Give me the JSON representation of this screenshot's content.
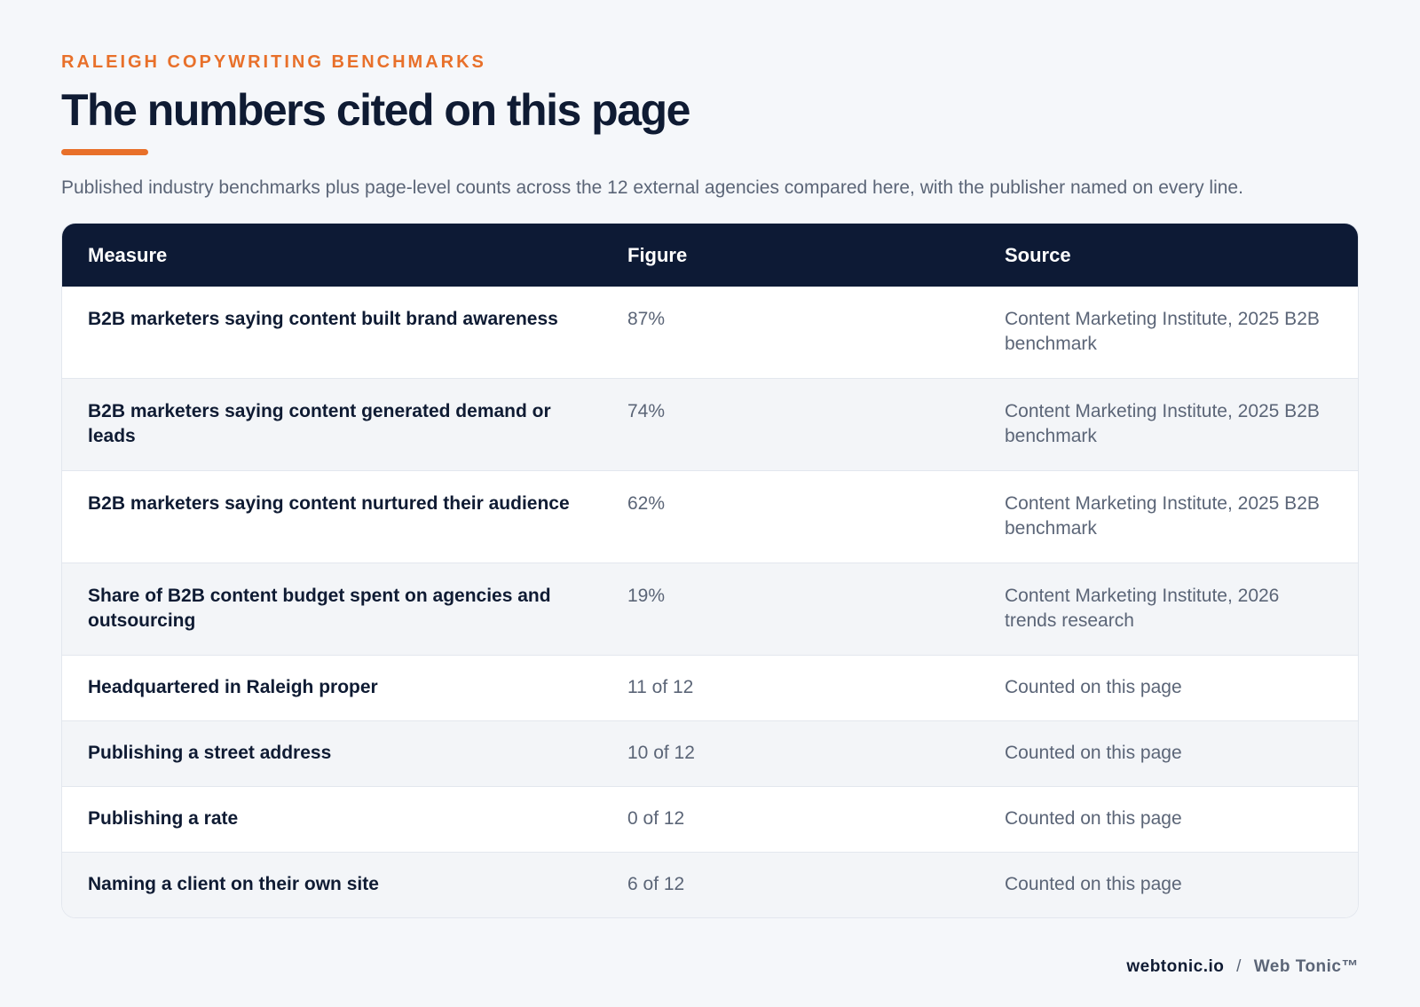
{
  "header": {
    "eyebrow": "RALEIGH COPYWRITING BENCHMARKS",
    "title": "The numbers cited on this page",
    "subtitle": "Published industry benchmarks plus page-level counts across the 12 external agencies compared here, with the publisher named on every line."
  },
  "table": {
    "columns": [
      "Measure",
      "Figure",
      "Source"
    ],
    "rows": [
      {
        "measure": "B2B marketers saying content built brand awareness",
        "figure": "87%",
        "source": "Content Marketing Institute, 2025 B2B benchmark"
      },
      {
        "measure": "B2B marketers saying content generated demand or leads",
        "figure": "74%",
        "source": "Content Marketing Institute, 2025 B2B benchmark"
      },
      {
        "measure": "B2B marketers saying content nurtured their audience",
        "figure": "62%",
        "source": "Content Marketing Institute, 2025 B2B benchmark"
      },
      {
        "measure": "Share of B2B content budget spent on agencies and outsourcing",
        "figure": "19%",
        "source": "Content Marketing Institute, 2026 trends research"
      },
      {
        "measure": "Headquartered in Raleigh proper",
        "figure": "11 of 12",
        "source": "Counted on this page"
      },
      {
        "measure": "Publishing a street address",
        "figure": "10 of 12",
        "source": "Counted on this page"
      },
      {
        "measure": "Publishing a rate",
        "figure": "0 of 12",
        "source": "Counted on this page"
      },
      {
        "measure": "Naming a client on their own site",
        "figure": "6 of 12",
        "source": "Counted on this page"
      }
    ]
  },
  "footer": {
    "domain": "webtonic.io",
    "separator": "/",
    "brand": "Web Tonic™"
  },
  "colors": {
    "accent": "#e8702a",
    "header_bg": "#0d1a35",
    "page_bg": "#f5f7fa"
  }
}
